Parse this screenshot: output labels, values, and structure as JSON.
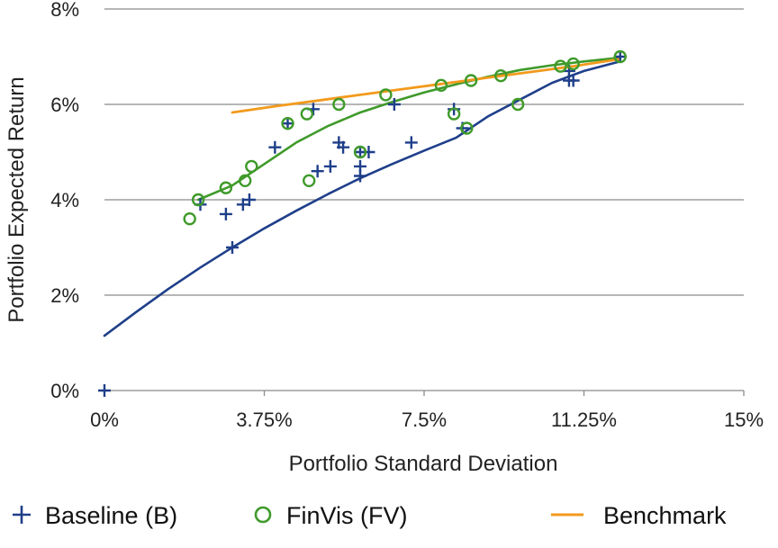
{
  "chart_data": {
    "type": "scatter",
    "xlabel": "Portfolio Standard Deviation",
    "ylabel": "Portfolio Expected Return",
    "xlim": [
      0,
      15
    ],
    "ylim": [
      0,
      8
    ],
    "x_ticks": [
      {
        "value": 0,
        "label": "0%"
      },
      {
        "value": 3.75,
        "label": "3.75%"
      },
      {
        "value": 7.5,
        "label": "7.5%"
      },
      {
        "value": 11.25,
        "label": "11.25%"
      },
      {
        "value": 15,
        "label": "15%"
      }
    ],
    "y_ticks": [
      {
        "value": 0,
        "label": "0%"
      },
      {
        "value": 2,
        "label": "2%"
      },
      {
        "value": 4,
        "label": "4%"
      },
      {
        "value": 6,
        "label": "6%"
      },
      {
        "value": 8,
        "label": "8%"
      }
    ],
    "grid": "horizontal",
    "legend_position": "bottom",
    "series": [
      {
        "name": "Baseline (B)",
        "marker": "plus",
        "color": "#1f3f8a",
        "points": [
          [
            0.0,
            0.0
          ],
          [
            2.25,
            3.9
          ],
          [
            2.85,
            3.7
          ],
          [
            3.0,
            3.0
          ],
          [
            3.25,
            3.9
          ],
          [
            3.4,
            4.0
          ],
          [
            4.0,
            5.1
          ],
          [
            4.3,
            5.6
          ],
          [
            4.9,
            5.9
          ],
          [
            5.0,
            4.6
          ],
          [
            5.3,
            4.7
          ],
          [
            5.5,
            5.2
          ],
          [
            5.6,
            5.1
          ],
          [
            6.0,
            5.0
          ],
          [
            6.0,
            4.7
          ],
          [
            6.0,
            4.5
          ],
          [
            6.2,
            5.0
          ],
          [
            6.8,
            6.0
          ],
          [
            7.2,
            5.2
          ],
          [
            8.2,
            5.9
          ],
          [
            8.4,
            5.5
          ],
          [
            10.9,
            6.7
          ],
          [
            10.9,
            6.5
          ],
          [
            11.0,
            6.5
          ],
          [
            12.1,
            7.0
          ]
        ],
        "trend": [
          [
            0,
            1.15
          ],
          [
            0.75,
            1.65
          ],
          [
            1.5,
            2.13
          ],
          [
            2.25,
            2.58
          ],
          [
            3.0,
            3.0
          ],
          [
            3.75,
            3.4
          ],
          [
            4.5,
            3.77
          ],
          [
            5.25,
            4.12
          ],
          [
            6.0,
            4.45
          ],
          [
            6.75,
            4.75
          ],
          [
            7.5,
            5.03
          ],
          [
            8.25,
            5.3
          ],
          [
            9.0,
            5.75
          ],
          [
            9.75,
            6.1
          ],
          [
            10.5,
            6.45
          ],
          [
            11.25,
            6.7
          ],
          [
            12.1,
            6.9
          ]
        ]
      },
      {
        "name": "FinVis (FV)",
        "marker": "circle",
        "color": "#3f9a2a",
        "points": [
          [
            2.0,
            3.6
          ],
          [
            2.2,
            4.0
          ],
          [
            2.85,
            4.25
          ],
          [
            3.3,
            4.4
          ],
          [
            3.45,
            4.7
          ],
          [
            4.3,
            5.6
          ],
          [
            4.75,
            5.8
          ],
          [
            4.8,
            4.4
          ],
          [
            5.5,
            6.0
          ],
          [
            6.0,
            5.0
          ],
          [
            6.6,
            6.2
          ],
          [
            7.9,
            6.4
          ],
          [
            8.2,
            5.8
          ],
          [
            8.5,
            5.5
          ],
          [
            8.6,
            6.5
          ],
          [
            9.3,
            6.6
          ],
          [
            9.7,
            6.0
          ],
          [
            10.7,
            6.8
          ],
          [
            11.0,
            6.85
          ],
          [
            12.1,
            7.0
          ]
        ],
        "trend": [
          [
            2.2,
            4.0
          ],
          [
            3.0,
            4.3
          ],
          [
            3.75,
            4.75
          ],
          [
            4.5,
            5.2
          ],
          [
            5.25,
            5.55
          ],
          [
            6.0,
            5.83
          ],
          [
            6.75,
            6.05
          ],
          [
            7.5,
            6.25
          ],
          [
            8.25,
            6.42
          ],
          [
            9.0,
            6.58
          ],
          [
            9.75,
            6.72
          ],
          [
            10.5,
            6.82
          ],
          [
            11.25,
            6.9
          ],
          [
            12.1,
            6.98
          ]
        ]
      },
      {
        "name": "Benchmark",
        "marker": "line",
        "color": "#f29a1c",
        "points": [],
        "trend": [
          [
            3.0,
            5.83
          ],
          [
            4.0,
            5.96
          ],
          [
            5.0,
            6.08
          ],
          [
            6.0,
            6.2
          ],
          [
            7.0,
            6.32
          ],
          [
            8.0,
            6.44
          ],
          [
            9.0,
            6.56
          ],
          [
            10.0,
            6.68
          ],
          [
            11.0,
            6.8
          ],
          [
            12.1,
            6.95
          ]
        ]
      }
    ]
  }
}
